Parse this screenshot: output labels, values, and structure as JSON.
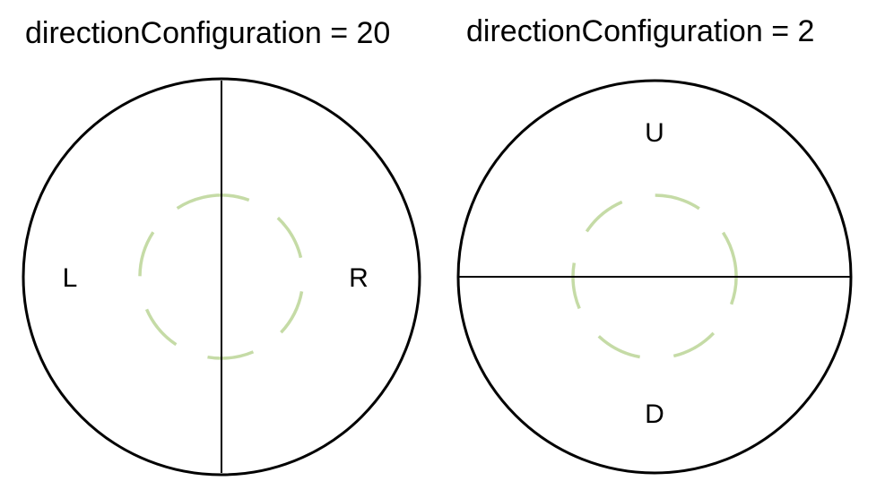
{
  "diagrams": [
    {
      "title": "directionConfiguration = 20",
      "divider": "vertical",
      "regions": [
        "L",
        "R"
      ]
    },
    {
      "title": "directionConfiguration = 2",
      "divider": "horizontal",
      "regions": [
        "U",
        "D"
      ]
    }
  ],
  "colors": {
    "outline": "#000000",
    "dashed_ring": "#c5dba6"
  }
}
